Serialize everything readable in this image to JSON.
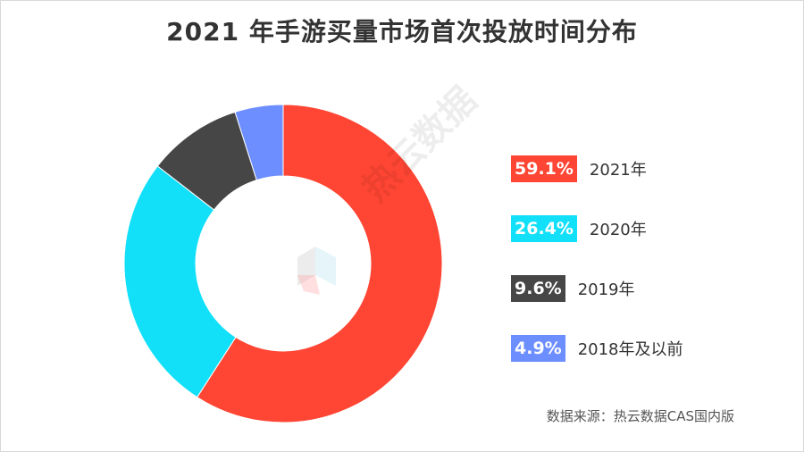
{
  "chart_data": {
    "type": "pie",
    "title": "2021 年手游买量市场首次投放时间分布",
    "categories": [
      "2021年",
      "2020年",
      "2019年",
      "2018年及以前"
    ],
    "values": [
      59.1,
      26.4,
      9.6,
      4.9
    ],
    "value_labels": [
      "59.1%",
      "26.4%",
      "9.6%",
      "4.9%"
    ],
    "colors": [
      "#FF4533",
      "#11E0F8",
      "#464646",
      "#6D8EFF"
    ],
    "donut": true,
    "legend_position": "right"
  },
  "source": "数据来源：热云数据CAS国内版",
  "watermark": "热云数据"
}
